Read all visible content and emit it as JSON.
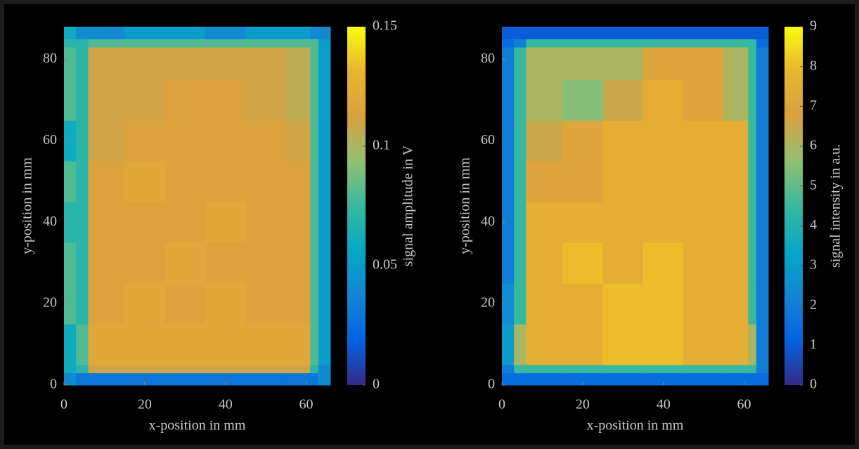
{
  "chart_data": [
    {
      "type": "heatmap",
      "xlabel": "x-position in mm",
      "ylabel": "y-position in mm",
      "colorbar_label": "signal amplitude in V",
      "xlim": [
        0,
        66
      ],
      "ylim": [
        0,
        88
      ],
      "xticks": [
        0,
        20,
        40,
        60
      ],
      "yticks": [
        0,
        20,
        40,
        60,
        80
      ],
      "zlim": [
        0,
        0.15
      ],
      "zticks": [
        0,
        0.05,
        0.1,
        0.15
      ],
      "colors": [
        "#352a87",
        "#0363e1",
        "#1485d4",
        "#06a7c6",
        "#38b99e",
        "#92bf73",
        "#d9a040",
        "#e9b530",
        "#f9fb0e"
      ],
      "xbins": [
        0,
        3,
        6,
        15,
        25,
        35,
        45,
        55,
        61,
        63,
        66
      ],
      "ybins": [
        0,
        3,
        5,
        15,
        25,
        35,
        45,
        55,
        65,
        75,
        83,
        85,
        88
      ],
      "values": [
        [
          0.04,
          0.03,
          0.03,
          0.03,
          0.03,
          0.03,
          0.03,
          0.03,
          0.03,
          0.04
        ],
        [
          0.06,
          0.07,
          0.11,
          0.11,
          0.11,
          0.11,
          0.11,
          0.11,
          0.07,
          0.04
        ],
        [
          0.06,
          0.08,
          0.12,
          0.12,
          0.12,
          0.12,
          0.12,
          0.12,
          0.08,
          0.05
        ],
        [
          0.08,
          0.07,
          0.115,
          0.12,
          0.115,
          0.12,
          0.115,
          0.115,
          0.08,
          0.05
        ],
        [
          0.08,
          0.07,
          0.115,
          0.115,
          0.12,
          0.115,
          0.115,
          0.115,
          0.08,
          0.05
        ],
        [
          0.07,
          0.07,
          0.115,
          0.115,
          0.115,
          0.12,
          0.115,
          0.115,
          0.08,
          0.05
        ],
        [
          0.08,
          0.07,
          0.115,
          0.12,
          0.115,
          0.115,
          0.115,
          0.115,
          0.08,
          0.05
        ],
        [
          0.06,
          0.07,
          0.11,
          0.115,
          0.115,
          0.115,
          0.115,
          0.11,
          0.08,
          0.05
        ],
        [
          0.08,
          0.07,
          0.11,
          0.11,
          0.115,
          0.115,
          0.11,
          0.105,
          0.08,
          0.05
        ],
        [
          0.08,
          0.07,
          0.11,
          0.11,
          0.11,
          0.11,
          0.11,
          0.105,
          0.08,
          0.05
        ],
        [
          0.07,
          0.07,
          0.08,
          0.08,
          0.08,
          0.08,
          0.08,
          0.08,
          0.08,
          0.05
        ],
        [
          0.06,
          0.04,
          0.04,
          0.05,
          0.05,
          0.04,
          0.05,
          0.05,
          0.04,
          0.04
        ]
      ]
    },
    {
      "type": "heatmap",
      "xlabel": "x-position in mm",
      "ylabel": "y-position in mm",
      "colorbar_label": "signal intensity in a.u.",
      "xlim": [
        0,
        66
      ],
      "ylim": [
        0,
        88
      ],
      "xticks": [
        0,
        20,
        40,
        60
      ],
      "yticks": [
        0,
        20,
        40,
        60,
        80
      ],
      "zlim": [
        0,
        9
      ],
      "zticks": [
        0,
        1,
        2,
        3,
        4,
        5,
        6,
        7,
        8,
        9
      ],
      "colors": [
        "#352a87",
        "#0363e1",
        "#1485d4",
        "#06a7c6",
        "#38b99e",
        "#92bf73",
        "#d9a040",
        "#e9b530",
        "#f9fb0e"
      ],
      "xbins": [
        0,
        3,
        6,
        15,
        25,
        35,
        45,
        55,
        61,
        63,
        66
      ],
      "ybins": [
        0,
        3,
        5,
        15,
        25,
        35,
        45,
        55,
        65,
        75,
        83,
        85,
        88
      ],
      "values": [
        [
          1.5,
          1.5,
          1.5,
          1.5,
          1.5,
          1.5,
          1.5,
          1.5,
          1.5,
          1.5
        ],
        [
          2,
          4.5,
          4.5,
          4.5,
          4.5,
          4.5,
          4.5,
          4.5,
          4.5,
          2
        ],
        [
          3,
          6,
          7.5,
          7.5,
          8,
          8,
          7.5,
          7.5,
          6,
          2
        ],
        [
          2.5,
          4.5,
          7.5,
          7.5,
          8,
          8,
          7.5,
          7.5,
          4.5,
          2
        ],
        [
          2,
          4.5,
          7.5,
          8,
          7.5,
          8,
          7.5,
          7.5,
          4.5,
          2
        ],
        [
          2,
          4.5,
          7.5,
          7.5,
          7.5,
          7.5,
          7.5,
          7.5,
          4.5,
          2
        ],
        [
          2,
          4.5,
          7,
          7,
          7.5,
          7.5,
          7.5,
          7.5,
          4.5,
          2
        ],
        [
          2,
          4.5,
          6.5,
          7,
          7.5,
          7.5,
          7.5,
          7.5,
          4.5,
          2
        ],
        [
          2,
          4.5,
          6,
          5.5,
          6.5,
          7.5,
          7,
          6,
          4.5,
          2
        ],
        [
          2,
          4.5,
          6,
          6,
          6,
          7,
          7,
          6,
          4.5,
          2
        ],
        [
          1.5,
          2,
          4.5,
          4.5,
          4.5,
          4.5,
          4.5,
          4.5,
          4.5,
          1.5
        ],
        [
          1,
          1,
          1,
          1,
          1,
          1,
          1,
          1,
          1,
          1
        ]
      ]
    }
  ]
}
